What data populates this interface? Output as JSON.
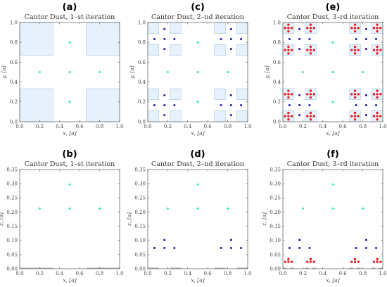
{
  "colors": {
    "region_fill": "#e6f1fb",
    "region_stroke": "#a8c8e6",
    "iter1_point": "#2ee6b4",
    "iter2_point": "#1a1ab8",
    "iter3_point": "#e82020",
    "frame": "#555555"
  },
  "chart_data": [
    {
      "id": "a",
      "letter": "(a)",
      "type": "scatter",
      "title": "Cantor Dust, 1–st iteration",
      "xlabel": "x, [a]",
      "ylabel": "y, [a]",
      "xlim": [
        0,
        1
      ],
      "ylim": [
        0,
        1
      ],
      "xticks": [
        "0.0",
        "0.2",
        "0.4",
        "0.6",
        "0.8",
        "1.0"
      ],
      "yticks": [
        "0.0",
        "0.2",
        "0.4",
        "0.6",
        "0.8",
        "1.0"
      ],
      "regions": [
        {
          "x0": 0.0,
          "x1": 0.3333,
          "y0": 0.0,
          "y1": 0.3333
        },
        {
          "x0": 0.6667,
          "x1": 1.0,
          "y0": 0.0,
          "y1": 0.3333
        },
        {
          "x0": 0.0,
          "x1": 0.3333,
          "y0": 0.6667,
          "y1": 1.0
        },
        {
          "x0": 0.6667,
          "x1": 1.0,
          "y0": 0.6667,
          "y1": 1.0
        }
      ],
      "series": [
        {
          "level": 1,
          "points": [
            [
              0.5,
              0.8
            ],
            [
              0.2,
              0.5
            ],
            [
              0.5,
              0.5
            ],
            [
              0.8,
              0.5
            ],
            [
              0.5,
              0.2
            ]
          ]
        }
      ]
    },
    {
      "id": "c",
      "letter": "(c)",
      "type": "scatter",
      "title": "Cantor Dust, 2–nd iteration",
      "xlabel": "x, [a]",
      "ylabel": "y, [a]",
      "xlim": [
        0,
        1
      ],
      "ylim": [
        0,
        1
      ],
      "xticks": [
        "0.0",
        "0.2",
        "0.4",
        "0.6",
        "0.8",
        "1.0"
      ],
      "yticks": [
        "0.0",
        "0.2",
        "0.4",
        "0.6",
        "0.8",
        "1.0"
      ],
      "regions": [
        {
          "x0": 0.0,
          "x1": 0.1111,
          "y0": 0.0,
          "y1": 0.1111
        },
        {
          "x0": 0.2222,
          "x1": 0.3333,
          "y0": 0.0,
          "y1": 0.1111
        },
        {
          "x0": 0.0,
          "x1": 0.1111,
          "y0": 0.2222,
          "y1": 0.3333
        },
        {
          "x0": 0.2222,
          "x1": 0.3333,
          "y0": 0.2222,
          "y1": 0.3333
        },
        {
          "x0": 0.6667,
          "x1": 0.7778,
          "y0": 0.0,
          "y1": 0.1111
        },
        {
          "x0": 0.8889,
          "x1": 1.0,
          "y0": 0.0,
          "y1": 0.1111
        },
        {
          "x0": 0.6667,
          "x1": 0.7778,
          "y0": 0.2222,
          "y1": 0.3333
        },
        {
          "x0": 0.8889,
          "x1": 1.0,
          "y0": 0.2222,
          "y1": 0.3333
        },
        {
          "x0": 0.0,
          "x1": 0.1111,
          "y0": 0.6667,
          "y1": 0.7778
        },
        {
          "x0": 0.2222,
          "x1": 0.3333,
          "y0": 0.6667,
          "y1": 0.7778
        },
        {
          "x0": 0.0,
          "x1": 0.1111,
          "y0": 0.8889,
          "y1": 1.0
        },
        {
          "x0": 0.2222,
          "x1": 0.3333,
          "y0": 0.8889,
          "y1": 1.0
        },
        {
          "x0": 0.6667,
          "x1": 0.7778,
          "y0": 0.6667,
          "y1": 0.7778
        },
        {
          "x0": 0.8889,
          "x1": 1.0,
          "y0": 0.6667,
          "y1": 0.7778
        },
        {
          "x0": 0.6667,
          "x1": 0.7778,
          "y0": 0.8889,
          "y1": 1.0
        },
        {
          "x0": 0.8889,
          "x1": 1.0,
          "y0": 0.8889,
          "y1": 1.0
        }
      ],
      "series": [
        {
          "level": 1,
          "points": [
            [
              0.5,
              0.8
            ],
            [
              0.2,
              0.5
            ],
            [
              0.5,
              0.5
            ],
            [
              0.8,
              0.5
            ],
            [
              0.5,
              0.2
            ]
          ]
        },
        {
          "level": 2,
          "points": [
            [
              0.1667,
              0.9333
            ],
            [
              0.0667,
              0.8333
            ],
            [
              0.1667,
              0.8333
            ],
            [
              0.2667,
              0.8333
            ],
            [
              0.1667,
              0.7333
            ],
            [
              0.8333,
              0.9333
            ],
            [
              0.7333,
              0.8333
            ],
            [
              0.8333,
              0.8333
            ],
            [
              0.9333,
              0.8333
            ],
            [
              0.8333,
              0.7333
            ],
            [
              0.1667,
              0.2667
            ],
            [
              0.0667,
              0.1667
            ],
            [
              0.1667,
              0.1667
            ],
            [
              0.2667,
              0.1667
            ],
            [
              0.1667,
              0.0667
            ],
            [
              0.8333,
              0.2667
            ],
            [
              0.7333,
              0.1667
            ],
            [
              0.8333,
              0.1667
            ],
            [
              0.9333,
              0.1667
            ],
            [
              0.8333,
              0.0667
            ]
          ]
        }
      ]
    },
    {
      "id": "e",
      "letter": "(e)",
      "type": "scatter",
      "title": "Cantor Dust, 3–rd iteration",
      "xlabel": "x, [a]",
      "ylabel": "y, [a]",
      "xlim": [
        0,
        1
      ],
      "ylim": [
        0,
        1
      ],
      "xticks": [
        "0.0",
        "0.2",
        "0.4",
        "0.6",
        "0.8",
        "1.0"
      ],
      "yticks": [
        "0.0",
        "0.2",
        "0.4",
        "0.6",
        "0.8",
        "1.0"
      ],
      "regions": [
        {
          "x0": 0.0,
          "x1": 0.1111,
          "y0": 0.0,
          "y1": 0.1111
        },
        {
          "x0": 0.2222,
          "x1": 0.3333,
          "y0": 0.0,
          "y1": 0.1111
        },
        {
          "x0": 0.0,
          "x1": 0.1111,
          "y0": 0.2222,
          "y1": 0.3333
        },
        {
          "x0": 0.2222,
          "x1": 0.3333,
          "y0": 0.2222,
          "y1": 0.3333
        },
        {
          "x0": 0.6667,
          "x1": 0.7778,
          "y0": 0.0,
          "y1": 0.1111
        },
        {
          "x0": 0.8889,
          "x1": 1.0,
          "y0": 0.0,
          "y1": 0.1111
        },
        {
          "x0": 0.6667,
          "x1": 0.7778,
          "y0": 0.2222,
          "y1": 0.3333
        },
        {
          "x0": 0.8889,
          "x1": 1.0,
          "y0": 0.2222,
          "y1": 0.3333
        },
        {
          "x0": 0.0,
          "x1": 0.1111,
          "y0": 0.6667,
          "y1": 0.7778
        },
        {
          "x0": 0.2222,
          "x1": 0.3333,
          "y0": 0.6667,
          "y1": 0.7778
        },
        {
          "x0": 0.0,
          "x1": 0.1111,
          "y0": 0.8889,
          "y1": 1.0
        },
        {
          "x0": 0.2222,
          "x1": 0.3333,
          "y0": 0.8889,
          "y1": 1.0
        },
        {
          "x0": 0.6667,
          "x1": 0.7778,
          "y0": 0.6667,
          "y1": 0.7778
        },
        {
          "x0": 0.8889,
          "x1": 1.0,
          "y0": 0.6667,
          "y1": 0.7778
        },
        {
          "x0": 0.6667,
          "x1": 0.7778,
          "y0": 0.8889,
          "y1": 1.0
        },
        {
          "x0": 0.8889,
          "x1": 1.0,
          "y0": 0.8889,
          "y1": 1.0
        }
      ],
      "series": [
        {
          "level": 1,
          "points": [
            [
              0.5,
              0.8
            ],
            [
              0.2,
              0.5
            ],
            [
              0.5,
              0.5
            ],
            [
              0.8,
              0.5
            ],
            [
              0.5,
              0.2
            ]
          ]
        },
        {
          "level": 2,
          "points": [
            [
              0.1667,
              0.9333
            ],
            [
              0.0667,
              0.8333
            ],
            [
              0.1667,
              0.8333
            ],
            [
              0.2667,
              0.8333
            ],
            [
              0.1667,
              0.7333
            ],
            [
              0.8333,
              0.9333
            ],
            [
              0.7333,
              0.8333
            ],
            [
              0.8333,
              0.8333
            ],
            [
              0.9333,
              0.8333
            ],
            [
              0.8333,
              0.7333
            ],
            [
              0.1667,
              0.2667
            ],
            [
              0.0667,
              0.1667
            ],
            [
              0.1667,
              0.1667
            ],
            [
              0.2667,
              0.1667
            ],
            [
              0.1667,
              0.0667
            ],
            [
              0.8333,
              0.2667
            ],
            [
              0.7333,
              0.1667
            ],
            [
              0.8333,
              0.1667
            ],
            [
              0.9333,
              0.1667
            ],
            [
              0.8333,
              0.0667
            ]
          ]
        },
        {
          "level": 3,
          "point_pattern": "plus",
          "centers": [
            [
              0.0556,
              0.0556
            ],
            [
              0.2778,
              0.0556
            ],
            [
              0.0556,
              0.2778
            ],
            [
              0.2778,
              0.2778
            ],
            [
              0.7222,
              0.0556
            ],
            [
              0.9444,
              0.0556
            ],
            [
              0.7222,
              0.2778
            ],
            [
              0.9444,
              0.2778
            ],
            [
              0.0556,
              0.7222
            ],
            [
              0.2778,
              0.7222
            ],
            [
              0.0556,
              0.9444
            ],
            [
              0.2778,
              0.9444
            ],
            [
              0.7222,
              0.7222
            ],
            [
              0.9444,
              0.7222
            ],
            [
              0.7222,
              0.9444
            ],
            [
              0.9444,
              0.9444
            ]
          ],
          "offset": 0.0333
        }
      ]
    },
    {
      "id": "b",
      "letter": "(b)",
      "type": "scatter",
      "title": "Cantor Dust, 1–st iteration",
      "xlabel": "x, [a]",
      "ylabel": "z, [a]",
      "xlim": [
        0,
        1
      ],
      "ylim": [
        0,
        0.35
      ],
      "xticks": [
        "0.0",
        "0.2",
        "0.4",
        "0.6",
        "0.8",
        "1.0"
      ],
      "yticks": [
        "0.00",
        "0.05",
        "0.10",
        "0.15",
        "0.20",
        "0.25",
        "0.30",
        "0.35"
      ],
      "segments": [
        [
          0.0,
          0.3333
        ],
        [
          0.6667,
          1.0
        ]
      ],
      "series": [
        {
          "level": 1,
          "points": [
            [
              0.2,
              0.2121
            ],
            [
              0.5,
              0.2121
            ],
            [
              0.8,
              0.2121
            ],
            [
              0.5,
              0.2971
            ]
          ]
        }
      ]
    },
    {
      "id": "d",
      "letter": "(d)",
      "type": "scatter",
      "title": "Cantor Dust, 2–nd iteration",
      "xlabel": "x, [a]",
      "ylabel": "z, [a]",
      "xlim": [
        0,
        1
      ],
      "ylim": [
        0,
        0.35
      ],
      "xticks": [
        "0.0",
        "0.2",
        "0.4",
        "0.6",
        "0.8",
        "1.0"
      ],
      "yticks": [
        "0.00",
        "0.05",
        "0.10",
        "0.15",
        "0.20",
        "0.25",
        "0.30",
        "0.35"
      ],
      "segments": [
        [
          0.0,
          0.1111
        ],
        [
          0.2222,
          0.3333
        ],
        [
          0.6667,
          0.7778
        ],
        [
          0.8889,
          1.0
        ]
      ],
      "series": [
        {
          "level": 1,
          "points": [
            [
              0.2,
              0.2121
            ],
            [
              0.5,
              0.2121
            ],
            [
              0.8,
              0.2121
            ],
            [
              0.5,
              0.2971
            ]
          ]
        },
        {
          "level": 2,
          "points": [
            [
              0.0667,
              0.0732
            ],
            [
              0.1667,
              0.0732
            ],
            [
              0.2667,
              0.0732
            ],
            [
              0.1667,
              0.1015
            ],
            [
              0.7333,
              0.0732
            ],
            [
              0.8333,
              0.0732
            ],
            [
              0.9333,
              0.0732
            ],
            [
              0.8333,
              0.1015
            ]
          ]
        }
      ]
    },
    {
      "id": "f",
      "letter": "(f)",
      "type": "scatter",
      "title": "Cantor Dust, 3–rd iteration",
      "xlabel": "x, [a]",
      "ylabel": "z, [a]",
      "xlim": [
        0,
        1
      ],
      "ylim": [
        0,
        0.35
      ],
      "xticks": [
        "0.0",
        "0.2",
        "0.4",
        "0.6",
        "0.8",
        "1.0"
      ],
      "yticks": [
        "0.00",
        "0.05",
        "0.10",
        "0.15",
        "0.20",
        "0.25",
        "0.30",
        "0.35"
      ],
      "segments": [
        [
          0.0,
          0.037
        ],
        [
          0.0741,
          0.1111
        ],
        [
          0.2222,
          0.2593
        ],
        [
          0.2963,
          0.3333
        ],
        [
          0.6667,
          0.7037
        ],
        [
          0.7407,
          0.7778
        ],
        [
          0.8889,
          0.9259
        ],
        [
          0.963,
          1.0
        ]
      ],
      "series": [
        {
          "level": 1,
          "points": [
            [
              0.2,
              0.2121
            ],
            [
              0.5,
              0.2121
            ],
            [
              0.8,
              0.2121
            ],
            [
              0.5,
              0.2971
            ]
          ]
        },
        {
          "level": 2,
          "points": [
            [
              0.0667,
              0.0732
            ],
            [
              0.1667,
              0.0732
            ],
            [
              0.2667,
              0.0732
            ],
            [
              0.1667,
              0.1015
            ],
            [
              0.7333,
              0.0732
            ],
            [
              0.8333,
              0.0732
            ],
            [
              0.9333,
              0.0732
            ],
            [
              0.8333,
              0.1015
            ]
          ]
        },
        {
          "level": 3,
          "points": [
            [
              0.0222,
              0.0244
            ],
            [
              0.0556,
              0.0244
            ],
            [
              0.0889,
              0.0244
            ],
            [
              0.0556,
              0.0338
            ],
            [
              0.2444,
              0.0244
            ],
            [
              0.2778,
              0.0244
            ],
            [
              0.3111,
              0.0244
            ],
            [
              0.2778,
              0.0338
            ],
            [
              0.6889,
              0.0244
            ],
            [
              0.7222,
              0.0244
            ],
            [
              0.7556,
              0.0244
            ],
            [
              0.7222,
              0.0338
            ],
            [
              0.9111,
              0.0244
            ],
            [
              0.9444,
              0.0244
            ],
            [
              0.9778,
              0.0244
            ],
            [
              0.9444,
              0.0338
            ]
          ]
        }
      ]
    }
  ]
}
